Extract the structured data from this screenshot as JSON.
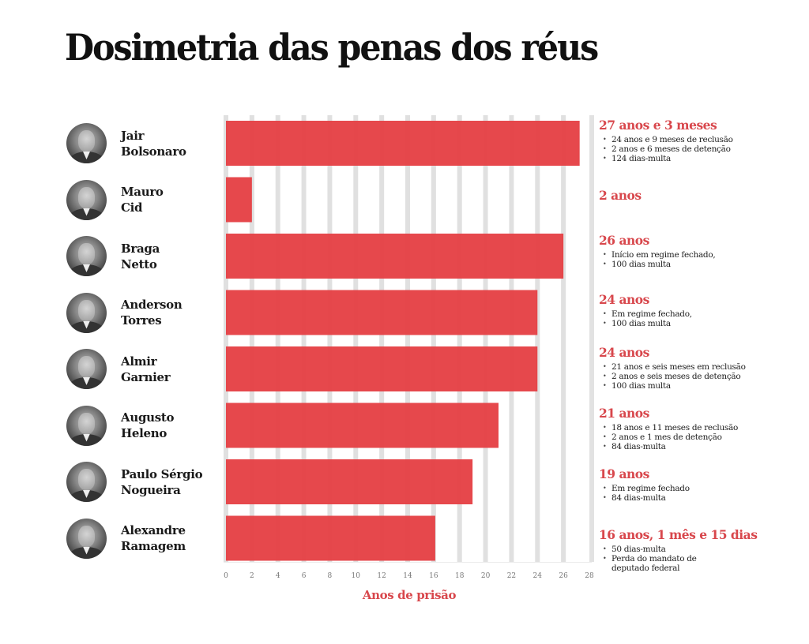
{
  "title": "Dosimetria das penas dos réus",
  "colors": {
    "bar": "#e54246",
    "gridline": "#e0e0e0",
    "accent_text": "#d8474c",
    "text": "#1a1a1a"
  },
  "chart_data": {
    "type": "bar",
    "orientation": "horizontal",
    "title": "Dosimetria das penas dos réus",
    "xlabel": "Anos de prisão",
    "ylabel": "",
    "xlim": [
      0,
      28
    ],
    "x_ticks": [
      "0",
      "2",
      "4",
      "6",
      "8",
      "10",
      "12",
      "14",
      "16",
      "18",
      "20",
      "22",
      "24",
      "26",
      "28"
    ],
    "grid": true,
    "categories": [
      "Jair Bolsonaro",
      "Mauro Cid",
      "Braga Netto",
      "Anderson Torres",
      "Almir Garnier",
      "Augusto Heleno",
      "Paulo Sérgio Nogueira",
      "Alexandre Ramagem"
    ],
    "values": [
      27.25,
      2,
      26,
      24,
      24,
      21,
      19,
      16.125
    ],
    "series": [
      {
        "name": "Anos de prisão",
        "values": [
          27.25,
          2,
          26,
          24,
          24,
          21,
          19,
          16.125
        ]
      }
    ]
  },
  "defendants": [
    {
      "name_line1": "Jair",
      "name_line2": "Bolsonaro",
      "photo": "portrait-photo",
      "total": "27 anos e 3 meses",
      "details": [
        "24 anos e 9 meses de reclusão",
        "2 anos e 6 meses de detenção",
        "124 dias-multa"
      ]
    },
    {
      "name_line1": "Mauro",
      "name_line2": "Cid",
      "photo": "portrait-photo",
      "total": "2 anos",
      "details": []
    },
    {
      "name_line1": "Braga",
      "name_line2": "Netto",
      "photo": "portrait-photo",
      "total": "26 anos",
      "details": [
        "Início em regime fechado,",
        "100 dias multa"
      ]
    },
    {
      "name_line1": "Anderson",
      "name_line2": "Torres",
      "photo": "portrait-photo",
      "total": "24 anos",
      "details": [
        "Em regime fechado,",
        "100 dias multa"
      ]
    },
    {
      "name_line1": "Almir",
      "name_line2": "Garnier",
      "photo": "portrait-photo",
      "total": "24 anos",
      "details": [
        "21 anos e seis meses em reclusão",
        "2 anos e seis meses de detenção",
        "100 dias multa"
      ]
    },
    {
      "name_line1": "Augusto",
      "name_line2": "Heleno",
      "photo": "portrait-photo",
      "total": "21 anos",
      "details": [
        "18 anos e 11 meses de reclusão",
        "2 anos e 1 mes de detenção",
        "84 dias-multa"
      ]
    },
    {
      "name_line1": "Paulo Sérgio",
      "name_line2": "Nogueira",
      "photo": "portrait-photo",
      "total": "19 anos",
      "details": [
        "Em regime fechado",
        "84 dias-multa"
      ]
    },
    {
      "name_line1": "Alexandre",
      "name_line2": "Ramagem",
      "photo": "portrait-photo",
      "total": "16 anos, 1 mês e 15 dias",
      "details": [
        "50 dias-multa",
        "Perda do mandato de\ndeputado federal"
      ]
    }
  ]
}
